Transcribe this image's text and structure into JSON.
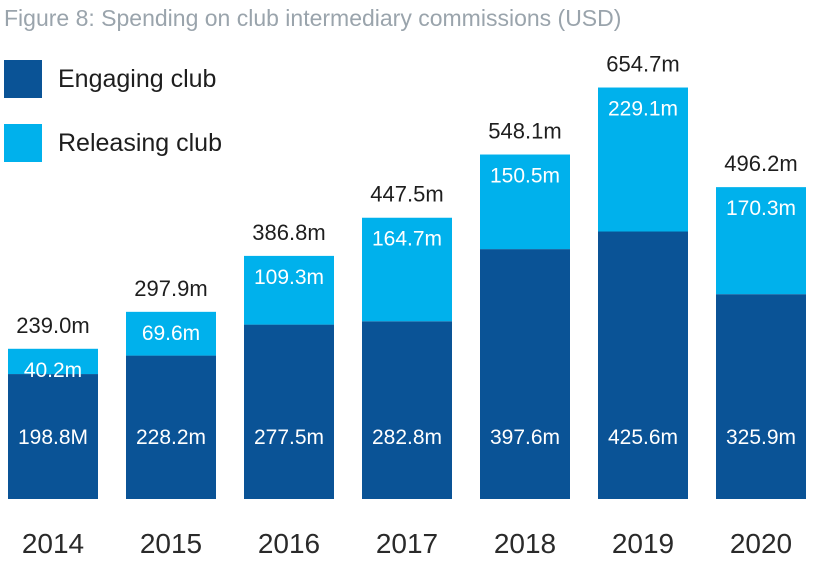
{
  "chart_data": {
    "type": "bar",
    "stacked": true,
    "title": "Figure 8: Spending on club intermediary commissions (USD)",
    "unit": "USD millions",
    "categories": [
      "2014",
      "2015",
      "2016",
      "2017",
      "2018",
      "2019",
      "2020"
    ],
    "series": [
      {
        "name": "Engaging club",
        "color": "#0a5396",
        "values": [
          198.8,
          228.2,
          277.5,
          282.8,
          397.6,
          425.6,
          325.9
        ],
        "labels": [
          "198.8M",
          "228.2m",
          "277.5m",
          "282.8m",
          "397.6m",
          "425.6m",
          "325.9m"
        ]
      },
      {
        "name": "Releasing club",
        "color": "#00b1ec",
        "values": [
          40.2,
          69.6,
          109.3,
          164.7,
          150.5,
          229.1,
          170.3
        ],
        "labels": [
          "40.2m",
          "69.6m",
          "109.3m",
          "164.7m",
          "150.5m",
          "229.1m",
          "170.3m"
        ]
      }
    ],
    "totals": [
      239.0,
      297.9,
      386.8,
      447.5,
      548.1,
      654.7,
      496.2
    ],
    "total_labels": [
      "239.0m",
      "297.9m",
      "386.8m",
      "447.5m",
      "548.1m",
      "654.7m",
      "496.2m"
    ],
    "ylim": [
      0,
      700
    ],
    "grid": false,
    "legend_position": "top-left",
    "xlabel": "",
    "ylabel": ""
  }
}
